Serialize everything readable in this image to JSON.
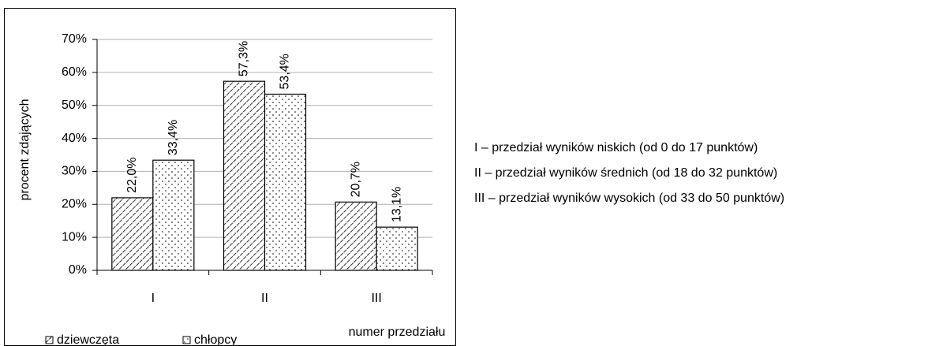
{
  "chart_data": {
    "type": "bar",
    "y_label": "procent zdających",
    "x_label": "numer przedziału",
    "categories": [
      "I",
      "II",
      "III"
    ],
    "series": [
      {
        "name": "dziewczęta",
        "color": "#000000",
        "pattern": "hatch",
        "values": [
          22.0,
          57.3,
          20.7
        ],
        "value_labels": [
          "22,0%",
          "57,3%",
          "20,7%"
        ]
      },
      {
        "name": "chłopcy",
        "color": "#000000",
        "pattern": "dots",
        "values": [
          33.4,
          53.4,
          13.1
        ],
        "value_labels": [
          "33,4%",
          "53,4%",
          "13,1%"
        ]
      }
    ],
    "ylim": [
      0,
      70
    ],
    "yticks": [
      {
        "value": 0,
        "label": "0%"
      },
      {
        "value": 10,
        "label": "10%"
      },
      {
        "value": 20,
        "label": "20%"
      },
      {
        "value": 30,
        "label": "30%"
      },
      {
        "value": 40,
        "label": "40%"
      },
      {
        "value": 50,
        "label": "50%"
      },
      {
        "value": 60,
        "label": "60%"
      },
      {
        "value": 70,
        "label": "70%"
      }
    ],
    "grid": true,
    "notes": [
      "I – przedział wyników niskich (od 0 do 17 punktów)",
      "II – przedział wyników średnich (od 18 do 32 punktów)",
      "III – przedział wyników wysokich (od 33 do 50 punktów)"
    ]
  }
}
